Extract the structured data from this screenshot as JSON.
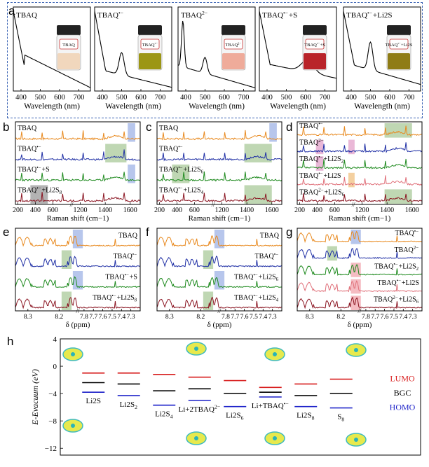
{
  "panel_labels": {
    "a": "a",
    "b": "b",
    "c": "c",
    "d": "d",
    "e": "e",
    "f": "f",
    "g": "g",
    "h": "h"
  },
  "panel_a": {
    "xlabel": "Wavelength (nm)",
    "xticks": [
      "400",
      "500",
      "600",
      "700"
    ],
    "samples": [
      {
        "title": "TBAQ",
        "vial_label": "TBAQ",
        "liquid": "#f1d7bd"
      },
      {
        "title": "TBAQ•−",
        "vial_label": "TBAQ•−",
        "liquid": "#9c9614"
      },
      {
        "title": "TBAQ2−",
        "vial_label": "TBAQ2−",
        "liquid": "#efab9a"
      },
      {
        "title": "TBAQ•−+S",
        "vial_label": "TBAQ•−+S",
        "liquid": "#b9242a"
      },
      {
        "title": "TBAQ•−+Li2S",
        "vial_label": "TBAQ•−+Li2S",
        "liquid": "#8f7c16"
      }
    ]
  },
  "raman_panels": [
    {
      "id": "b",
      "xlabel": "Raman shift (cm−1)",
      "xticks": [
        "200",
        "400",
        "600",
        "1200",
        "1400",
        "1600"
      ],
      "traces": [
        {
          "label": "TBAQ",
          "color": "#e8891e"
        },
        {
          "label": "TBAQ•−",
          "color": "#1f2fa5"
        },
        {
          "label": "TBAQ•−+S",
          "color": "#1e8a1e"
        },
        {
          "label": "TBAQ•−+Li2S8",
          "color": "#8a1320"
        }
      ]
    },
    {
      "id": "c",
      "xlabel": "Raman shift (cm−1)",
      "xticks": [
        "200",
        "400",
        "600",
        "1200",
        "1400",
        "1600"
      ],
      "traces": [
        {
          "label": "TBAQ",
          "color": "#e8891e"
        },
        {
          "label": "TBAQ•−",
          "color": "#1f2fa5"
        },
        {
          "label": "TBAQ•−+Li2S6",
          "color": "#1e8a1e"
        },
        {
          "label": "TBAQ•−+Li2S4",
          "color": "#8a1320"
        }
      ]
    },
    {
      "id": "d",
      "xlabel": "Raman shift (cm−1)",
      "xticks": [
        "200",
        "400",
        "600",
        "1200",
        "1400",
        "1600"
      ],
      "traces": [
        {
          "label": "TBAQ•−",
          "color": "#e8891e"
        },
        {
          "label": "TBAQ2−",
          "color": "#1f2fa5"
        },
        {
          "label": "TBAQ•−+Li2S2",
          "color": "#1e8a1e"
        },
        {
          "label": "TBAQ•−+Li2S",
          "color": "#e0707a"
        },
        {
          "label": "TBAQ2−+Li2S6",
          "color": "#8a1320"
        }
      ]
    }
  ],
  "nmr_panels": [
    {
      "id": "e",
      "xlabel": "δ (ppm)",
      "xticks": [
        "8.3",
        "8.2",
        "7.8",
        "7.7",
        "7.6",
        "7.5",
        "7.4",
        "7.3"
      ],
      "traces": [
        {
          "label": "TBAQ",
          "color": "#e8891e"
        },
        {
          "label": "TBAQ•−",
          "color": "#1f2fa5"
        },
        {
          "label": "TBAQ•−+S",
          "color": "#1e8a1e"
        },
        {
          "label": "TBAQ•−+Li2S8",
          "color": "#8a1320"
        }
      ]
    },
    {
      "id": "f",
      "xlabel": "δ (ppm)",
      "xticks": [
        "8.3",
        "8.2",
        "7.8",
        "7.7",
        "7.6",
        "7.5",
        "7.4",
        "7.3"
      ],
      "traces": [
        {
          "label": "TBAQ",
          "color": "#e8891e"
        },
        {
          "label": "TBAQ•−",
          "color": "#1f2fa5"
        },
        {
          "label": "TBAQ•−+Li2S6",
          "color": "#1e8a1e"
        },
        {
          "label": "TBAQ•−+Li2S4",
          "color": "#8a1320"
        }
      ]
    },
    {
      "id": "g",
      "xlabel": "δ (ppm)",
      "xticks": [
        "8.3",
        "8.2",
        "7.8",
        "7.7",
        "7.6",
        "7.5",
        "7.4",
        "7.3"
      ],
      "traces": [
        {
          "label": "TBAQ•−",
          "color": "#e8891e"
        },
        {
          "label": "TBAQ2−",
          "color": "#1f2fa5"
        },
        {
          "label": "TBAQ•−+Li2S2",
          "color": "#1e8a1e"
        },
        {
          "label": "TBAQ•−+Li2S",
          "color": "#e0707a"
        },
        {
          "label": "TBAQ2−+Li2S6",
          "color": "#8a1320"
        }
      ]
    }
  ],
  "chart_data": {
    "type": "bar",
    "title": "",
    "ylabel": "E-Evacuum (eV)",
    "ylim": [
      -13,
      4
    ],
    "yticks": [
      4,
      0,
      -4,
      -8,
      -12
    ],
    "species": [
      "Li2S",
      "Li2S2",
      "Li2S4",
      "Li+2TBAQ2−",
      "Li2S6",
      "Li+TBAQ•−",
      "Li2S8",
      "S8"
    ],
    "series": [
      {
        "name": "LUMO",
        "color": "#d81e1e",
        "values": [
          -1.0,
          -1.0,
          -1.2,
          -1.6,
          -2.1,
          -3.1,
          -2.6,
          -1.9
        ]
      },
      {
        "name": "BGC",
        "color": "#000000",
        "values": [
          -2.4,
          -2.6,
          -3.6,
          -3.3,
          -4.0,
          -3.8,
          -4.3,
          -4.0
        ]
      },
      {
        "name": "HOMO",
        "color": "#1a1fc8",
        "values": [
          -3.8,
          -4.3,
          -5.7,
          -5.0,
          -5.9,
          -4.5,
          -5.9,
          -6.1
        ]
      }
    ]
  }
}
